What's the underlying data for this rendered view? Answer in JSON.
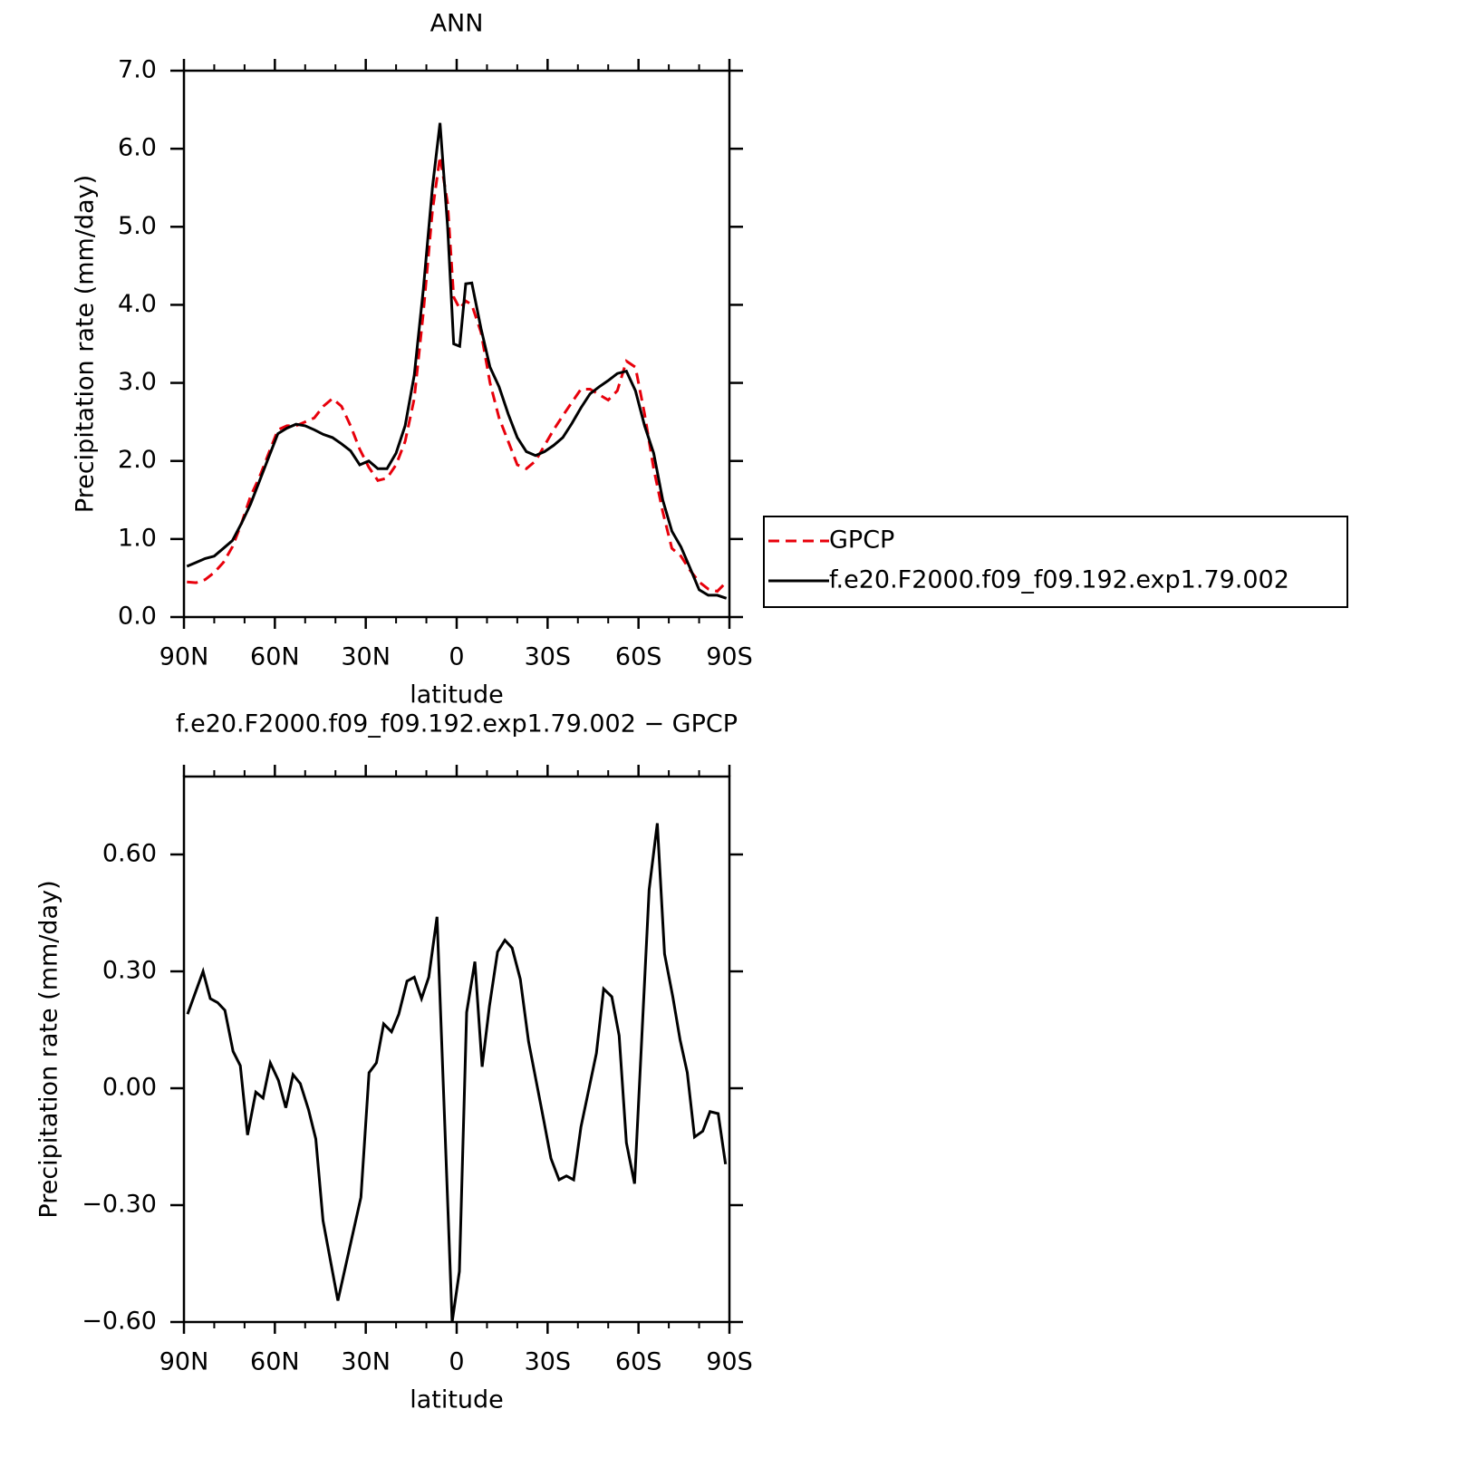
{
  "chart_data": [
    {
      "type": "line",
      "title": "ANN",
      "xlabel": "latitude",
      "ylabel": "Precipitation rate (mm/day)",
      "x": [
        89,
        86,
        83,
        80,
        77,
        74,
        71,
        68,
        65,
        62,
        59,
        56,
        53,
        50,
        47,
        44,
        41,
        38,
        35,
        32,
        29,
        26,
        23,
        20,
        17,
        14,
        11,
        8,
        5.5,
        3,
        1,
        -1,
        -3,
        -5,
        -8,
        -11,
        -14,
        -17,
        -20,
        -23,
        -26,
        -29,
        -32,
        -35,
        -38,
        -41,
        -44,
        -47,
        -50,
        -53,
        -56,
        -59,
        -62,
        -65,
        -68,
        -71,
        -74,
        -77,
        -80,
        -83,
        -86,
        -89
      ],
      "series": [
        {
          "name": "GPCP",
          "color": "#e8000b",
          "dash": "dashed",
          "values": [
            0.45,
            0.44,
            0.48,
            0.57,
            0.7,
            0.9,
            1.2,
            1.55,
            1.8,
            2.1,
            2.4,
            2.45,
            2.45,
            2.5,
            2.55,
            2.7,
            2.8,
            2.7,
            2.45,
            2.15,
            1.92,
            1.75,
            1.78,
            1.95,
            2.25,
            2.8,
            3.9,
            5.2,
            5.9,
            5.3,
            4.1,
            3.95,
            4.05,
            4.0,
            3.65,
            3.0,
            2.55,
            2.25,
            1.95,
            1.9,
            2.0,
            2.2,
            2.4,
            2.58,
            2.75,
            2.92,
            2.92,
            2.85,
            2.78,
            2.9,
            3.28,
            3.2,
            2.6,
            1.9,
            1.35,
            0.88,
            0.78,
            0.6,
            0.45,
            0.36,
            0.33,
            0.45
          ]
        },
        {
          "name": "f.e20.F2000.f09_f09.192.exp1.79.002",
          "color": "#000000",
          "dash": "solid",
          "values": [
            0.65,
            0.7,
            0.75,
            0.78,
            0.88,
            0.98,
            1.2,
            1.45,
            1.75,
            2.05,
            2.35,
            2.42,
            2.47,
            2.45,
            2.4,
            2.34,
            2.3,
            2.22,
            2.13,
            1.95,
            2.0,
            1.9,
            1.9,
            2.1,
            2.45,
            3.1,
            4.2,
            5.5,
            6.33,
            5.0,
            3.5,
            3.47,
            4.27,
            4.28,
            3.7,
            3.2,
            2.95,
            2.6,
            2.3,
            2.12,
            2.07,
            2.12,
            2.2,
            2.3,
            2.48,
            2.68,
            2.86,
            2.95,
            3.03,
            3.12,
            3.15,
            2.9,
            2.45,
            2.1,
            1.5,
            1.1,
            0.9,
            0.63,
            0.35,
            0.28,
            0.28,
            0.24
          ]
        }
      ],
      "xlim": [
        90,
        -90
      ],
      "xticks": [
        {
          "value": 90,
          "label": "90N"
        },
        {
          "value": 60,
          "label": "60N"
        },
        {
          "value": 30,
          "label": "30N"
        },
        0,
        {
          "value": -30,
          "label": "30S"
        },
        {
          "value": -60,
          "label": "60S"
        },
        {
          "value": -90,
          "label": "90S"
        }
      ],
      "ylim": [
        0,
        7
      ],
      "yticks": [
        {
          "value": 0,
          "label": "0.0"
        },
        {
          "value": 1,
          "label": "1.0"
        },
        {
          "value": 2,
          "label": "2.0"
        },
        {
          "value": 3,
          "label": "3.0"
        },
        {
          "value": 4,
          "label": "4.0"
        },
        {
          "value": 5,
          "label": "5.0"
        },
        {
          "value": 6,
          "label": "6.0"
        },
        {
          "value": 7,
          "label": "7.0"
        }
      ],
      "legend": "right"
    },
    {
      "type": "line",
      "title": "f.e20.F2000.f09_f09.192.exp1.79.002 − GPCP",
      "xlabel": "latitude",
      "ylabel": "Precipitation rate (mm/day)",
      "x": [
        88.8,
        83.7,
        81.3,
        78.9,
        76.5,
        73.8,
        71.4,
        69.0,
        66.3,
        63.9,
        61.5,
        58.8,
        56.4,
        54.0,
        51.6,
        48.9,
        46.5,
        44.1,
        39.2,
        31.6,
        28.9,
        26.5,
        24.1,
        21.5,
        19.1,
        16.4,
        14.0,
        11.6,
        9.2,
        6.5,
        1.5,
        -0.9,
        -3.3,
        -6.0,
        -8.4,
        -10.8,
        -13.5,
        -15.9,
        -18.3,
        -21.0,
        -23.7,
        -28.8,
        -31.1,
        -33.8,
        -36.2,
        -38.6,
        -41.0,
        -46.1,
        -48.5,
        -51.2,
        -53.6,
        -56.0,
        -58.7,
        -63.5,
        -66.2,
        -68.6,
        -71.3,
        -73.7,
        -76.1,
        -78.5,
        -81.2,
        -83.6,
        -86.3,
        -88.7
      ],
      "series": [
        {
          "color": "#000000",
          "dash": "solid",
          "values": [
            0.19,
            0.3,
            0.23,
            0.22,
            0.2,
            0.095,
            0.058,
            -0.12,
            -0.01,
            -0.025,
            0.065,
            0.02,
            -0.05,
            0.035,
            0.012,
            -0.055,
            -0.13,
            -0.34,
            -0.545,
            -0.28,
            0.04,
            0.065,
            0.165,
            0.145,
            0.19,
            0.275,
            0.285,
            0.23,
            0.285,
            0.44,
            -0.6,
            -0.47,
            0.195,
            0.325,
            0.055,
            0.21,
            0.35,
            0.38,
            0.36,
            0.28,
            0.12,
            -0.085,
            -0.18,
            -0.235,
            -0.225,
            -0.235,
            -0.1,
            0.09,
            0.255,
            0.235,
            0.135,
            -0.14,
            -0.245,
            0.51,
            0.68,
            0.345,
            0.235,
            0.125,
            0.04,
            -0.125,
            -0.11,
            -0.06,
            -0.065,
            -0.195
          ]
        }
      ],
      "xlim": [
        90,
        -90
      ],
      "xticks": [
        {
          "value": 90,
          "label": "90N"
        },
        {
          "value": 60,
          "label": "60N"
        },
        {
          "value": 30,
          "label": "30N"
        },
        0,
        {
          "value": -30,
          "label": "30S"
        },
        {
          "value": -60,
          "label": "60S"
        },
        {
          "value": -90,
          "label": "90S"
        }
      ],
      "ylim": [
        -0.6,
        0.8
      ],
      "yticks": [
        {
          "value": -0.6,
          "label": "−0.60"
        },
        {
          "value": -0.3,
          "label": "−0.30"
        },
        {
          "value": 0,
          "label": "0.00"
        },
        {
          "value": 0.3,
          "label": "0.30"
        },
        {
          "value": 0.6,
          "label": "0.60"
        }
      ]
    }
  ]
}
